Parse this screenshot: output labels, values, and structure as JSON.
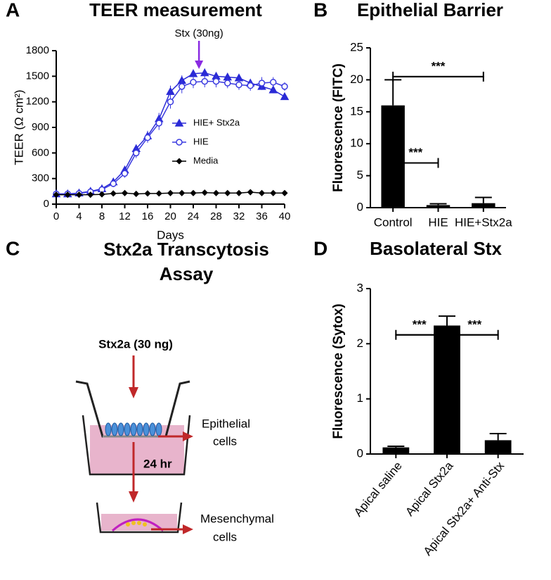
{
  "chart_data": [
    {
      "type": "line",
      "panel_label": "A",
      "title": "TEER measurement",
      "x_label": "Days",
      "y_label": "TEER (Ω cm²)",
      "x": [
        0,
        2,
        4,
        6,
        8,
        10,
        12,
        14,
        16,
        18,
        20,
        22,
        24,
        26,
        28,
        30,
        32,
        34,
        36,
        38,
        40
      ],
      "series": [
        {
          "name": "HIE+ Stx2a",
          "color": "#2a2ad6",
          "marker": "triangle",
          "filled": true,
          "values": [
            120,
            120,
            130,
            150,
            180,
            260,
            400,
            650,
            800,
            1000,
            1320,
            1450,
            1530,
            1540,
            1500,
            1490,
            1480,
            1420,
            1380,
            1340,
            1260
          ],
          "errors": [
            15,
            15,
            15,
            20,
            25,
            30,
            40,
            50,
            60,
            70,
            70,
            60,
            50,
            50,
            40,
            40,
            40,
            40,
            40,
            40,
            30
          ]
        },
        {
          "name": "HIE",
          "color": "#3a3ae0",
          "marker": "circle",
          "filled": false,
          "values": [
            120,
            120,
            125,
            145,
            170,
            240,
            360,
            600,
            780,
            950,
            1200,
            1380,
            1430,
            1440,
            1440,
            1420,
            1400,
            1390,
            1420,
            1430,
            1380
          ],
          "errors": [
            20,
            20,
            20,
            20,
            30,
            40,
            50,
            60,
            60,
            80,
            80,
            80,
            70,
            70,
            70,
            60,
            60,
            60,
            70,
            60,
            50
          ]
        },
        {
          "name": "Media",
          "color": "#000000",
          "marker": "diamond",
          "filled": true,
          "values": [
            110,
            110,
            110,
            110,
            115,
            125,
            130,
            120,
            125,
            125,
            130,
            130,
            130,
            135,
            130,
            130,
            130,
            140,
            130,
            130,
            130
          ],
          "errors": [
            5,
            5,
            5,
            5,
            5,
            5,
            5,
            5,
            5,
            5,
            5,
            5,
            5,
            5,
            5,
            5,
            5,
            5,
            5,
            5,
            5
          ]
        }
      ],
      "xlim": [
        0,
        40
      ],
      "xticks": [
        0,
        4,
        8,
        12,
        16,
        20,
        24,
        28,
        32,
        36,
        40
      ],
      "ylim": [
        0,
        1800
      ],
      "yticks": [
        0,
        300,
        600,
        900,
        1200,
        1500,
        1800
      ],
      "annotation": {
        "text": "Stx (30ng)",
        "x": 25,
        "color": "#8a2be2"
      }
    },
    {
      "type": "bar",
      "panel_label": "B",
      "title": "Epithelial Barrier",
      "y_label": "Fluorescence (FITC)",
      "categories": [
        "Control",
        "HIE",
        "HIE+Stx2a"
      ],
      "values": [
        16,
        0.4,
        0.7
      ],
      "errors": [
        4,
        0.2,
        0.9
      ],
      "color": "#000000",
      "ylim": [
        0,
        25
      ],
      "yticks": [
        0,
        5,
        10,
        15,
        20,
        25
      ],
      "significance": [
        "***",
        "***"
      ],
      "rotate_labels": false
    },
    {
      "type": "bar",
      "panel_label": "D",
      "title": "Basolateral  Stx",
      "y_label": "Fluorescence (Sytox)",
      "categories": [
        "Apical saline",
        "Apical Stx2a",
        "Apical Stx2a+ Anti-Stx"
      ],
      "values": [
        0.12,
        2.33,
        0.25
      ],
      "errors": [
        0.02,
        0.17,
        0.12
      ],
      "color": "#000000",
      "ylim": [
        0,
        3
      ],
      "yticks": [
        0,
        1,
        2,
        3
      ],
      "significance": [
        "***",
        "***"
      ],
      "rotate_labels": true
    }
  ],
  "diagram": {
    "panel_label": "C",
    "title": [
      "Stx2a Transcytosis",
      "Assay"
    ],
    "toxin": "Stx2a (30 ng)",
    "epithelial": [
      "Epithelial",
      "cells"
    ],
    "time": "24 hr",
    "mesenchymal": [
      "Mesenchymal",
      "cells"
    ]
  }
}
